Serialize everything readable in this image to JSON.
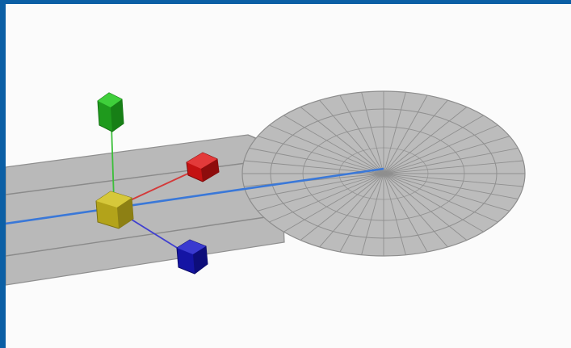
{
  "viewport": {
    "background": "#fbfbfb",
    "frame_color": "#0b5fa5"
  },
  "scene": {
    "mesh_fill": "#b9b9b9",
    "mesh_edge": "#8a8a8a",
    "center_axis_color": "#3a78d8",
    "gizmo": {
      "x_axis_color": "#cc1414",
      "y_axis_color": "#22a01e",
      "z_axis_color": "#1a1aa8",
      "origin_color": "#b8a81a"
    }
  }
}
